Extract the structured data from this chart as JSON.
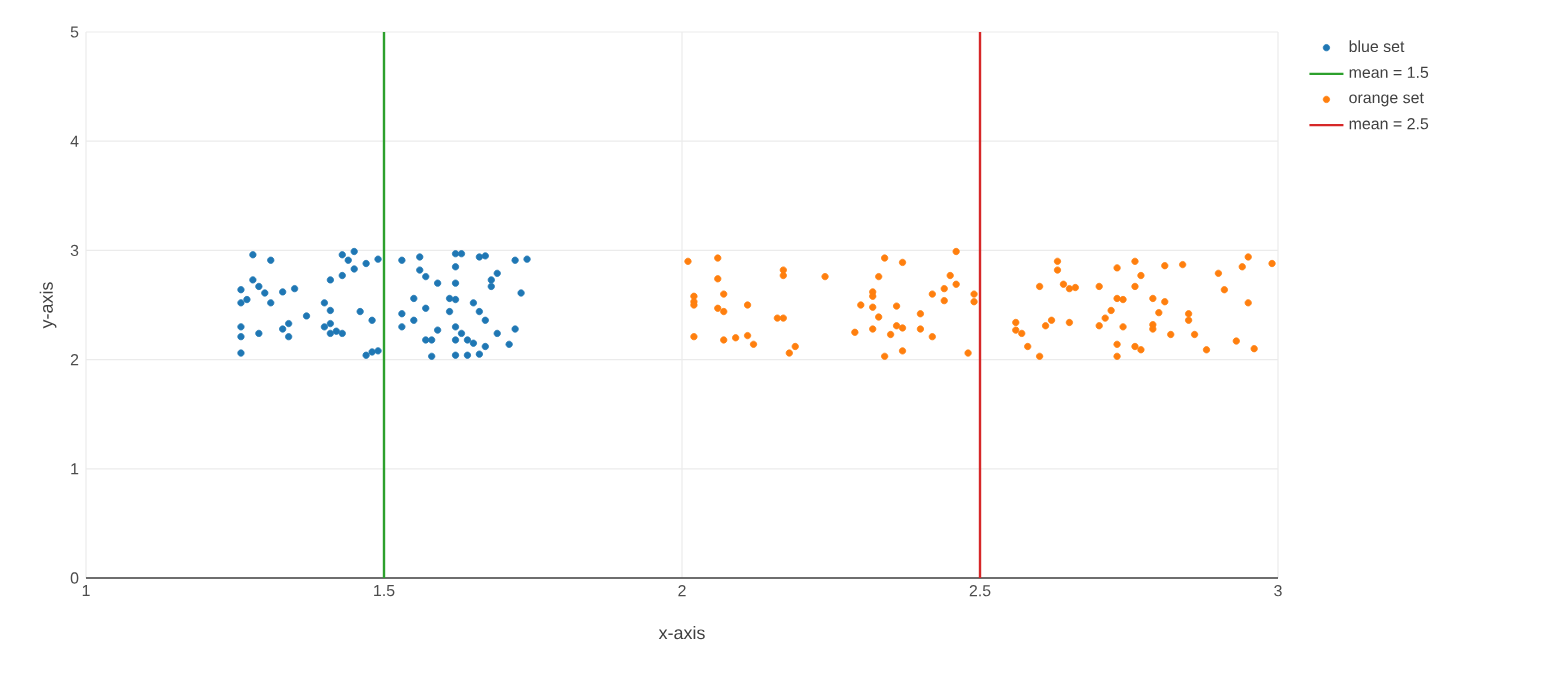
{
  "chart_data": {
    "type": "scatter",
    "xlabel": "x-axis",
    "ylabel": "y-axis",
    "xlim": [
      1,
      3
    ],
    "ylim": [
      0,
      5
    ],
    "xticks": [
      1,
      1.5,
      2,
      2.5,
      3
    ],
    "yticks": [
      0,
      1,
      2,
      3,
      4,
      5
    ],
    "grid": true,
    "legend": "top right",
    "series": [
      {
        "name": "blue set",
        "color": "#1f77b4",
        "marker": "circle",
        "x": [
          1.28,
          1.31,
          1.43,
          1.45,
          1.44,
          1.47,
          1.49,
          1.53,
          1.56,
          1.62,
          1.63,
          1.66,
          1.67,
          1.72,
          1.74,
          1.28,
          1.29,
          1.26,
          1.3,
          1.31,
          1.27,
          1.33,
          1.35,
          1.41,
          1.43,
          1.45,
          1.56,
          1.57,
          1.59,
          1.62,
          1.62,
          1.68,
          1.68,
          1.69,
          1.73,
          1.26,
          1.4,
          1.41,
          1.37,
          1.46,
          1.48,
          1.55,
          1.53,
          1.55,
          1.57,
          1.61,
          1.62,
          1.65,
          1.66,
          1.61,
          1.67,
          1.26,
          1.26,
          1.29,
          1.33,
          1.34,
          1.34,
          1.4,
          1.41,
          1.41,
          1.42,
          1.43,
          1.53,
          1.59,
          1.62,
          1.63,
          1.64,
          1.69,
          1.72,
          1.57,
          1.62,
          1.65,
          1.26,
          1.47,
          1.48,
          1.49,
          1.58,
          1.62,
          1.64,
          1.66,
          1.67,
          1.71,
          1.58
        ],
        "values": [
          2.96,
          2.91,
          2.96,
          2.99,
          2.91,
          2.88,
          2.92,
          2.91,
          2.94,
          2.97,
          2.97,
          2.94,
          2.95,
          2.91,
          2.92,
          2.73,
          2.67,
          2.64,
          2.61,
          2.52,
          2.55,
          2.62,
          2.65,
          2.73,
          2.77,
          2.83,
          2.82,
          2.76,
          2.7,
          2.7,
          2.85,
          2.73,
          2.67,
          2.79,
          2.61,
          2.52,
          2.52,
          2.45,
          2.4,
          2.44,
          2.36,
          2.56,
          2.42,
          2.36,
          2.47,
          2.56,
          2.55,
          2.52,
          2.44,
          2.44,
          2.36,
          2.3,
          2.21,
          2.24,
          2.28,
          2.33,
          2.21,
          2.3,
          2.33,
          2.24,
          2.26,
          2.24,
          2.3,
          2.27,
          2.3,
          2.24,
          2.18,
          2.24,
          2.28,
          2.18,
          2.18,
          2.15,
          2.06,
          2.04,
          2.07,
          2.08,
          2.03,
          2.04,
          2.04,
          2.05,
          2.12,
          2.14,
          2.18
        ]
      },
      {
        "name": "mean = 1.5",
        "type": "line",
        "marker": "none",
        "color": "#2ca02c",
        "x": [
          1.5,
          1.5
        ],
        "values": [
          0,
          5
        ]
      },
      {
        "name": "orange set",
        "color": "#ff7f0e",
        "marker": "circle",
        "x": [
          2.01,
          2.06,
          2.06,
          2.02,
          2.02,
          2.02,
          2.07,
          2.06,
          2.07,
          2.11,
          2.17,
          2.17,
          2.24,
          2.02,
          2.07,
          2.09,
          2.11,
          2.12,
          2.16,
          2.17,
          2.18,
          2.19,
          2.29,
          2.3,
          2.32,
          2.32,
          2.32,
          2.32,
          2.33,
          2.34,
          2.37,
          2.33,
          2.35,
          2.36,
          2.36,
          2.37,
          2.34,
          2.37,
          2.4,
          2.4,
          2.42,
          2.42,
          2.44,
          2.44,
          2.45,
          2.46,
          2.46,
          2.49,
          2.49,
          2.48,
          2.56,
          2.56,
          2.57,
          2.58,
          2.6,
          2.6,
          2.61,
          2.62,
          2.63,
          2.63,
          2.64,
          2.65,
          2.66,
          2.65,
          2.7,
          2.7,
          2.71,
          2.72,
          2.73,
          2.74,
          2.73,
          2.74,
          2.73,
          2.73,
          2.76,
          2.77,
          2.76,
          2.77,
          2.76,
          2.79,
          2.8,
          2.79,
          2.79,
          2.81,
          2.82,
          2.81,
          2.84,
          2.85,
          2.85,
          2.86,
          2.88,
          2.9,
          2.91,
          2.93,
          2.94,
          2.95,
          2.95,
          2.96,
          2.99
        ],
        "values": [
          2.9,
          2.93,
          2.74,
          2.58,
          2.53,
          2.5,
          2.6,
          2.47,
          2.44,
          2.5,
          2.77,
          2.82,
          2.76,
          2.21,
          2.18,
          2.2,
          2.22,
          2.14,
          2.38,
          2.38,
          2.06,
          2.12,
          2.25,
          2.5,
          2.62,
          2.58,
          2.48,
          2.28,
          2.76,
          2.93,
          2.89,
          2.39,
          2.23,
          2.49,
          2.31,
          2.29,
          2.03,
          2.08,
          2.42,
          2.28,
          2.21,
          2.6,
          2.65,
          2.54,
          2.77,
          2.69,
          2.99,
          2.6,
          2.53,
          2.06,
          2.27,
          2.34,
          2.24,
          2.12,
          2.03,
          2.67,
          2.31,
          2.36,
          2.82,
          2.9,
          2.69,
          2.65,
          2.66,
          2.34,
          2.67,
          2.31,
          2.38,
          2.45,
          2.56,
          2.55,
          2.84,
          2.3,
          2.14,
          2.03,
          2.12,
          2.09,
          2.9,
          2.77,
          2.67,
          2.56,
          2.43,
          2.32,
          2.28,
          2.53,
          2.23,
          2.86,
          2.87,
          2.42,
          2.36,
          2.23,
          2.09,
          2.79,
          2.64,
          2.17,
          2.85,
          2.94,
          2.52,
          2.1,
          2.88
        ]
      },
      {
        "name": "mean = 2.5",
        "type": "line",
        "marker": "none",
        "color": "#d62728",
        "x": [
          2.5,
          2.5
        ],
        "values": [
          0,
          5
        ]
      }
    ]
  }
}
